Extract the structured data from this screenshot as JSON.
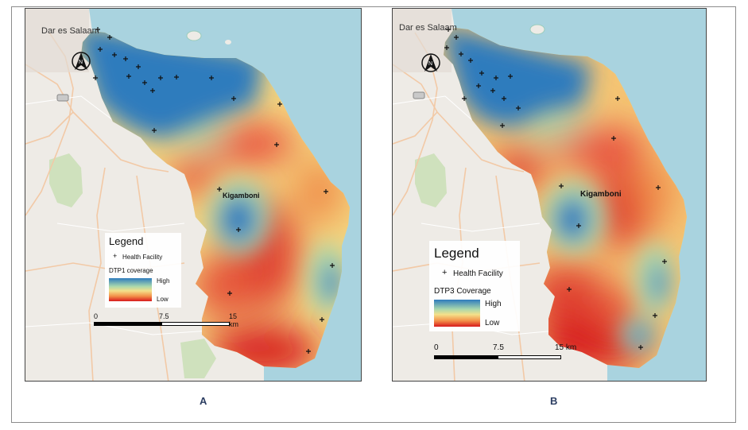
{
  "panels": [
    {
      "label": "A",
      "city": "Dar es Salaam",
      "town": "Kigamboni",
      "legend": {
        "title": "Legend",
        "facility": "Health Facility",
        "coverage": "DTP1 coverage",
        "high": "High",
        "low": "Low"
      },
      "scale": [
        "0",
        "7.5",
        "15 km"
      ]
    },
    {
      "label": "B",
      "city": "Dar es Salaam",
      "town": "Kigamboni",
      "legend": {
        "title": "Legend",
        "facility": "Health Facility",
        "coverage": "DTP3 Coverage",
        "high": "High",
        "low": "Low"
      },
      "scale": [
        "0",
        "7.5",
        "15 km"
      ]
    }
  ],
  "colors": {
    "high": "#2e7bbd",
    "mid_high": "#a8d7ad",
    "mid": "#f4e08a",
    "mid_low": "#f39149",
    "low": "#d7191c",
    "water": "#a9d3df",
    "land": "#eeebe6"
  },
  "icons": {
    "north": "north-arrow-icon",
    "facility": "plus-marker-icon"
  }
}
